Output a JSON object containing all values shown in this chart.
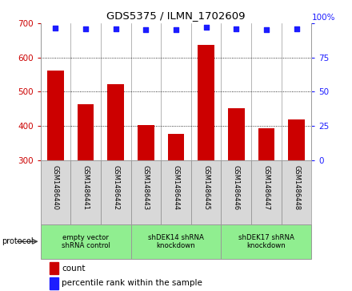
{
  "title": "GDS5375 / ILMN_1702609",
  "samples": [
    "GSM1486440",
    "GSM1486441",
    "GSM1486442",
    "GSM1486443",
    "GSM1486444",
    "GSM1486445",
    "GSM1486446",
    "GSM1486447",
    "GSM1486448"
  ],
  "counts": [
    562,
    463,
    521,
    402,
    376,
    637,
    452,
    392,
    418
  ],
  "percentiles": [
    96.5,
    95.8,
    95.9,
    95.3,
    95.2,
    97.0,
    95.8,
    95.5,
    95.7
  ],
  "ylim_left": [
    300,
    700
  ],
  "ylim_right": [
    0,
    100
  ],
  "yticks_left": [
    300,
    400,
    500,
    600,
    700
  ],
  "yticks_right": [
    0,
    25,
    50,
    75,
    100
  ],
  "bar_color": "#cc0000",
  "dot_color": "#1c1cff",
  "grid_color": "#000000",
  "bg_color": "#ffffff",
  "protocol_groups": [
    {
      "label": "empty vector\nshRNA control",
      "start": 0,
      "end": 3,
      "color": "#90ee90"
    },
    {
      "label": "shDEK14 shRNA\nknockdown",
      "start": 3,
      "end": 6,
      "color": "#90ee90"
    },
    {
      "label": "shDEK17 shRNA\nknockdown",
      "start": 6,
      "end": 9,
      "color": "#90ee90"
    }
  ],
  "legend_items": [
    {
      "label": "count",
      "color": "#cc0000"
    },
    {
      "label": "percentile rank within the sample",
      "color": "#1c1cff"
    }
  ],
  "bar_width": 0.55
}
